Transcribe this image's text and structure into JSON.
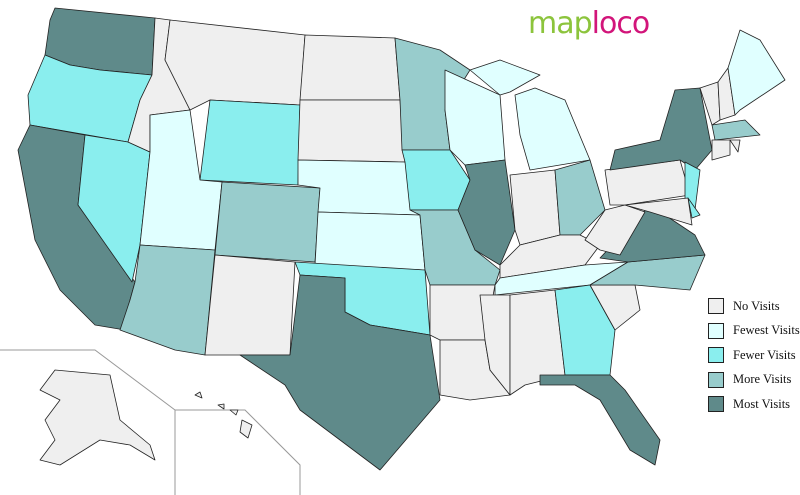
{
  "logo": {
    "part1": "map",
    "part2": "loco"
  },
  "legend": [
    {
      "key": "none",
      "label": "No Visits",
      "color": "#efefef"
    },
    {
      "key": "fewest",
      "label": "Fewest Visits",
      "color": "#e0ffff"
    },
    {
      "key": "fewer",
      "label": "Fewer Visits",
      "color": "#8aeeee"
    },
    {
      "key": "more",
      "label": "More Visits",
      "color": "#98cccc"
    },
    {
      "key": "most",
      "label": "Most Visits",
      "color": "#5f8a8a"
    }
  ],
  "states": {
    "WA": "most",
    "OR": "fewer",
    "CA": "most",
    "NV": "fewer",
    "ID": "none",
    "MT": "none",
    "WY": "fewer",
    "UT": "fewest",
    "AZ": "more",
    "CO": "more",
    "NM": "none",
    "ND": "none",
    "SD": "none",
    "NE": "fewest",
    "KS": "fewest",
    "OK": "fewer",
    "TX": "most",
    "MN": "more",
    "IA": "fewer",
    "MO": "more",
    "AR": "none",
    "LA": "none",
    "WI": "fewest",
    "IL": "most",
    "MI": "fewest",
    "IN": "none",
    "OH": "more",
    "KY": "none",
    "TN": "fewest",
    "MS": "none",
    "AL": "none",
    "GA": "fewer",
    "FL": "most",
    "SC": "none",
    "NC": "more",
    "VA": "most",
    "WV": "none",
    "PA": "none",
    "NY": "most",
    "NJ": "fewer",
    "DE": "fewer",
    "MD": "none",
    "VT": "none",
    "NH": "none",
    "ME": "fewest",
    "MA": "more",
    "CT": "none",
    "RI": "none",
    "AK": "none",
    "HI": "none"
  }
}
